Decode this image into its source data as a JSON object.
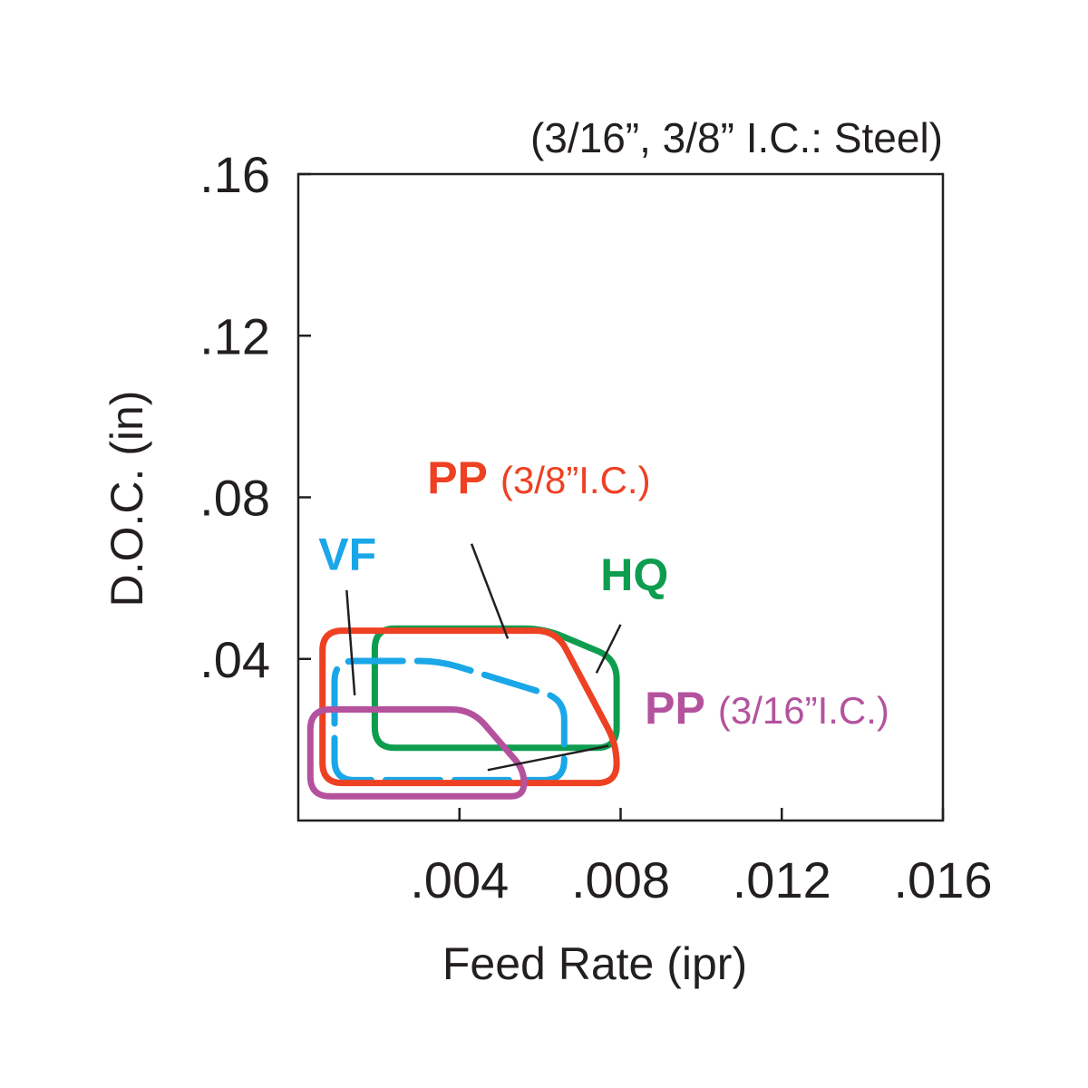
{
  "chart_data": {
    "type": "area",
    "title": "(3/16”, 3/8” I.C.: Steel)",
    "xlabel": "Feed Rate (ipr)",
    "ylabel": "D.O.C. (in)",
    "xlim": [
      0,
      0.016
    ],
    "ylim": [
      0,
      0.16
    ],
    "x_ticks": [
      {
        "value": 0.004,
        "label": ".004"
      },
      {
        "value": 0.008,
        "label": ".008"
      },
      {
        "value": 0.012,
        "label": ".012"
      },
      {
        "value": 0.016,
        "label": ".016"
      }
    ],
    "y_ticks": [
      {
        "value": 0.04,
        "label": ".04"
      },
      {
        "value": 0.08,
        "label": ".08"
      },
      {
        "value": 0.12,
        "label": ".12"
      },
      {
        "value": 0.16,
        "label": ".16"
      }
    ],
    "grid": false,
    "regions": [
      {
        "id": "pp-38",
        "name": "PP",
        "note": "(3/8”I.C.)",
        "color": "#ee4123",
        "style": "solid",
        "points": [
          [
            0.0006,
            0.0093
          ],
          [
            0.0006,
            0.047
          ],
          [
            0.0064,
            0.047
          ],
          [
            0.0079,
            0.0188
          ],
          [
            0.0079,
            0.0093
          ]
        ],
        "label_pos": [
          0.0032,
          0.081
        ],
        "leader": [
          [
            0.0043,
            0.0685
          ],
          [
            0.0052,
            0.045
          ]
        ]
      },
      {
        "id": "hq",
        "name": "HQ",
        "note": "",
        "color": "#0e9d4f",
        "style": "solid",
        "points": [
          [
            0.0019,
            0.018
          ],
          [
            0.0019,
            0.0475
          ],
          [
            0.0061,
            0.0475
          ],
          [
            0.0079,
            0.04
          ],
          [
            0.0079,
            0.018
          ]
        ],
        "label_pos": [
          0.0075,
          0.057
        ],
        "leader": [
          [
            0.008,
            0.0485
          ],
          [
            0.0074,
            0.0365
          ]
        ]
      },
      {
        "id": "vf",
        "name": "VF",
        "note": "",
        "color": "#1aa7e8",
        "style": "dashed",
        "points": [
          [
            0.0009,
            0.01
          ],
          [
            0.0009,
            0.0395
          ],
          [
            0.0035,
            0.0395
          ],
          [
            0.0066,
            0.03
          ],
          [
            0.0066,
            0.01
          ]
        ],
        "label_pos": [
          0.0005,
          0.062
        ],
        "leader": [
          [
            0.0012,
            0.057
          ],
          [
            0.0014,
            0.031
          ]
        ]
      },
      {
        "id": "pp-316",
        "name": "PP",
        "note": "(3/16”I.C.)",
        "color": "#b4529e",
        "style": "solid",
        "points": [
          [
            0.0003,
            0.006
          ],
          [
            0.0003,
            0.0275
          ],
          [
            0.0043,
            0.0275
          ],
          [
            0.0056,
            0.0125
          ],
          [
            0.0056,
            0.006
          ]
        ],
        "label_pos": [
          0.0086,
          0.024
        ],
        "leader": [
          [
            0.0077,
            0.0185
          ],
          [
            0.0047,
            0.0125
          ]
        ]
      }
    ]
  }
}
